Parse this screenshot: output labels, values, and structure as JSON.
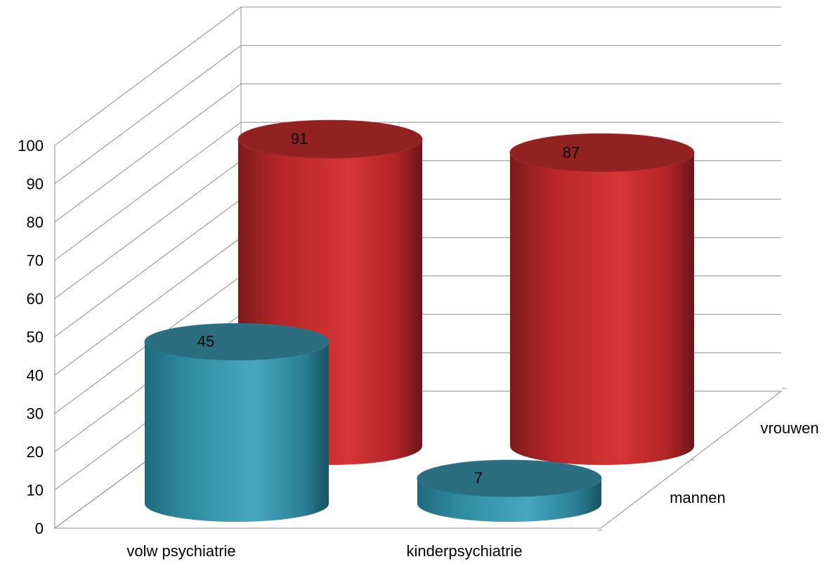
{
  "chart_data": {
    "type": "bar",
    "style": "3d-cylinder",
    "categories": [
      "volw psychiatrie",
      "kinderpsychiatrie"
    ],
    "series": [
      {
        "name": "mannen",
        "values": [
          45,
          7
        ],
        "color": "#3a9bb5"
      },
      {
        "name": "vrouwen",
        "values": [
          91,
          87
        ],
        "color": "#d03234"
      }
    ],
    "yticks": [
      "0",
      "10",
      "20",
      "30",
      "40",
      "50",
      "60",
      "70",
      "80",
      "90",
      "100"
    ],
    "ylim": [
      0,
      100
    ],
    "grid": true,
    "depth_labels": [
      "mannen",
      "vrouwen"
    ],
    "title": "",
    "xlabel": "",
    "ylabel": ""
  }
}
